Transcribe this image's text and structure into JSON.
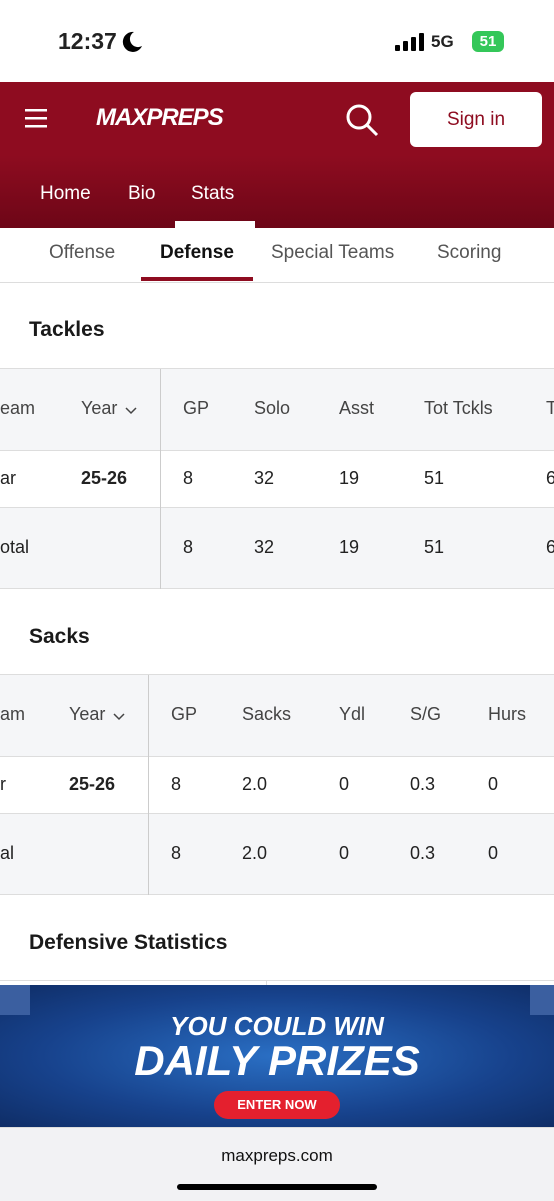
{
  "status_bar": {
    "time": "12:37",
    "network": "5G",
    "battery": "51"
  },
  "header": {
    "logo": "MAXPREPS",
    "sign_in": "Sign in"
  },
  "nav": [
    "Home",
    "Bio",
    "Stats"
  ],
  "tabs": [
    "Offense",
    "Defense",
    "Special Teams",
    "Scoring"
  ],
  "sections": [
    {
      "title": "Tackles",
      "headers": [
        "eam",
        "Year",
        "GP",
        "Solo",
        "Asst",
        "Tot Tckls",
        "T"
      ],
      "rows": [
        {
          "cells": [
            "ar",
            "25-26",
            "8",
            "32",
            "19",
            "51",
            "6"
          ]
        },
        {
          "cells": [
            "otal",
            null,
            "8",
            "32",
            "19",
            "51",
            "6"
          ]
        }
      ]
    },
    {
      "title": "Sacks",
      "headers": [
        "am",
        "Year",
        "GP",
        "Sacks",
        "Ydl",
        "S/G",
        "Hurs"
      ],
      "rows": [
        {
          "cells": [
            "r",
            "25-26",
            "8",
            "2.0",
            "0",
            "0.3",
            "0"
          ]
        },
        {
          "cells": [
            "al",
            null,
            "8",
            "2.0",
            "0",
            "0.3",
            "0"
          ]
        }
      ]
    },
    {
      "title": "Defensive Statistics"
    }
  ],
  "ad": {
    "line1": "YOU COULD WIN",
    "line2": "DAILY PRIZES",
    "button": "ENTER NOW"
  },
  "footer": {
    "url": "maxpreps.com"
  }
}
